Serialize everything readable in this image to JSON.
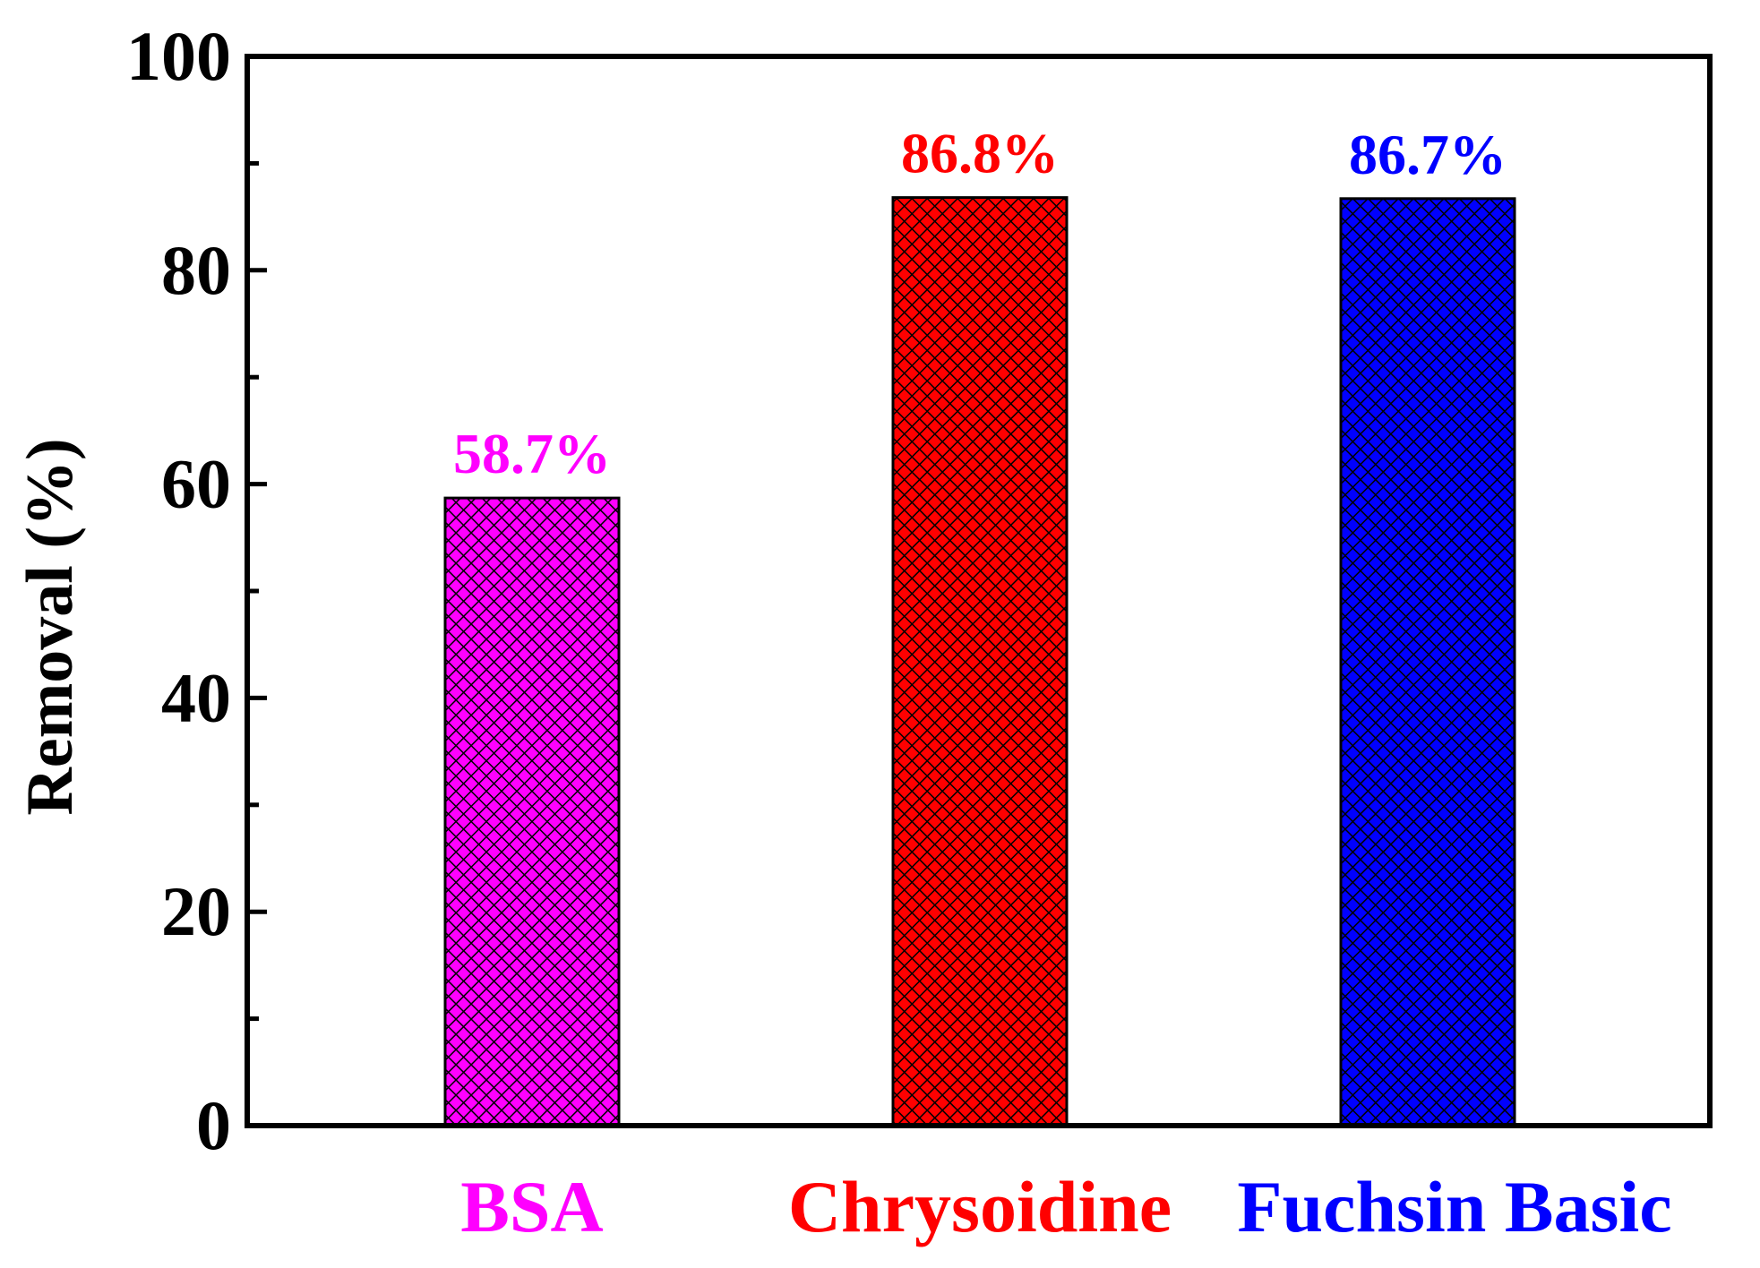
{
  "chart_data": {
    "type": "bar",
    "title": "",
    "xlabel": "",
    "ylabel": "Removal (%)",
    "ylim": [
      0,
      100
    ],
    "yticks": [
      0,
      20,
      40,
      60,
      80,
      100
    ],
    "categories": [
      "BSA",
      "Chrysoidine",
      "Fuchsin Basic"
    ],
    "values": [
      58.7,
      86.8,
      86.7
    ],
    "data_labels": [
      "58.7%",
      "86.8%",
      "86.7%"
    ],
    "colors": [
      "#ff00ff",
      "#ff0000",
      "#0000ff"
    ],
    "pattern": "crosshatch",
    "grid": false,
    "legend": "none"
  }
}
